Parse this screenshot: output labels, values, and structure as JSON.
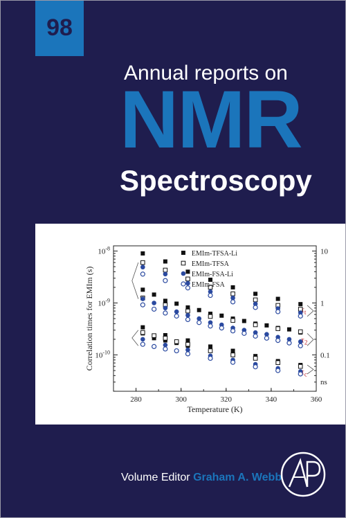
{
  "cover": {
    "volume": "98",
    "title_top": "Annual reports on",
    "title_main": "NMR",
    "title_bottom": "Spectroscopy",
    "editor_label": "Volume Editor",
    "editor_name": "Graham A. Webb",
    "publisher_logo_icon": "academic-press-logo-icon",
    "colors": {
      "background": "#1f1d4e",
      "accent": "#1b75bb",
      "text": "#ffffff"
    }
  },
  "chart_data": {
    "type": "scatter",
    "xlabel": "Temperature (K)",
    "ylabel": "Correlation times for EMIm (s)",
    "xlim": [
      270,
      360
    ],
    "ylim_log10": [
      -10.7,
      -7.9
    ],
    "y_scale": "log",
    "x_ticks": [
      280,
      300,
      320,
      340,
      360
    ],
    "y_ticks": [
      {
        "mantissa": "10",
        "exp": "-8",
        "value": 1e-08
      },
      {
        "mantissa": "10",
        "exp": "-9",
        "value": 1e-09
      },
      {
        "mantissa": "10",
        "exp": "-10",
        "value": 1e-10
      }
    ],
    "right_axis": {
      "labels": [
        "10",
        "1",
        "0.1",
        "ns"
      ]
    },
    "tau_labels": [
      {
        "base": "τ",
        "sub": "t"
      },
      {
        "base": "τ",
        "sub": "2"
      },
      {
        "base": "τ",
        "sub": "c"
      }
    ],
    "legend_position": "top-right",
    "x": [
      283,
      288,
      293,
      298,
      303,
      308,
      313,
      318,
      323,
      328,
      333,
      338,
      343,
      348,
      353
    ],
    "series": [
      {
        "name": "EMIm-TFSA-Li",
        "marker": "filled-square",
        "tau_t": [
          9e-09,
          null,
          6.3e-09,
          null,
          4e-09,
          null,
          2.8e-09,
          null,
          2e-09,
          null,
          1.5e-09,
          null,
          1.2e-09,
          null,
          9.5e-10
        ],
        "tau_1": [
          1.8e-09,
          1.45e-09,
          1.1e-09,
          9.7e-10,
          8.2e-10,
          7.3e-10,
          6.2e-10,
          5.7e-10,
          5e-10,
          4.5e-10,
          4e-10,
          3.7e-10,
          3.3e-10,
          3.1e-10,
          2.7e-10
        ],
        "tau_2": [
          3.4e-10,
          null,
          2.4e-10,
          null,
          1.9e-10,
          null,
          1.45e-10,
          null,
          1.2e-10,
          null,
          9.5e-11,
          null,
          7.6e-11,
          null,
          6.4e-11
        ],
        "tau_c": [
          2.6e-10,
          2.1e-10,
          1.9e-10,
          1.7e-10,
          1.5e-10,
          null,
          null,
          null,
          null,
          null,
          null,
          null,
          null,
          null,
          null
        ]
      },
      {
        "name": "EMIm-TFSA",
        "marker": "open-square",
        "tau_t": [
          6e-09,
          null,
          4.3e-09,
          null,
          2.9e-09,
          null,
          2e-09,
          null,
          1.5e-09,
          null,
          1.15e-09,
          null,
          9e-10,
          null,
          7.6e-10
        ],
        "tau_1": [
          1.25e-09,
          null,
          9.2e-10,
          null,
          7e-10,
          null,
          5.5e-10,
          null,
          4.6e-10,
          null,
          3.8e-10,
          null,
          3.2e-10,
          null,
          2.8e-10
        ],
        "tau_2": [
          2.7e-10,
          2.35e-10,
          2.1e-10,
          1.8e-10,
          1.6e-10,
          null,
          1.2e-10,
          null,
          1e-10,
          null,
          8.6e-11,
          null,
          7.1e-11,
          null,
          6e-11
        ]
      },
      {
        "name": "EMIm-FSA-Li",
        "marker": "filled-circle",
        "tau_t": [
          4.9e-09,
          null,
          3.6e-09,
          null,
          2.4e-09,
          null,
          1.65e-09,
          null,
          1.25e-09,
          null,
          9.6e-10,
          null,
          7.8e-10,
          null,
          6.5e-10
        ],
        "tau_1": [
          1.2e-09,
          1e-09,
          8e-10,
          6.8e-10,
          5.8e-10,
          5e-10,
          4.2e-10,
          3.8e-10,
          3.3e-10,
          3e-10,
          2.7e-10,
          2.5e-10,
          2.2e-10,
          2e-10,
          1.8e-10
        ],
        "tau_2": [
          2e-10,
          null,
          1.55e-10,
          null,
          1.25e-10,
          null,
          9.6e-11,
          null,
          8e-11,
          null,
          6.6e-11,
          null,
          5.5e-11,
          null,
          4.8e-11
        ]
      },
      {
        "name": "EMIm-FSA",
        "marker": "open-circle",
        "tau_t": [
          3.6e-09,
          null,
          2.7e-09,
          null,
          1.95e-09,
          null,
          1.4e-09,
          null,
          1.05e-09,
          null,
          8.2e-10,
          null,
          6.8e-10,
          null,
          5.6e-10
        ],
        "tau_1": [
          9.2e-10,
          7.6e-10,
          6.4e-10,
          5.6e-10,
          4.8e-10,
          4.2e-10,
          3.6e-10,
          3.3e-10,
          2.9e-10,
          2.6e-10,
          2.3e-10,
          2.1e-10,
          1.9e-10,
          1.7e-10,
          1.5e-10
        ],
        "tau_2": [
          1.6e-10,
          1.45e-10,
          1.3e-10,
          1.2e-10,
          1.05e-10,
          null,
          8.6e-11,
          null,
          7.2e-11,
          null,
          5.9e-11,
          null,
          5e-11,
          null,
          4.3e-11
        ]
      }
    ]
  }
}
